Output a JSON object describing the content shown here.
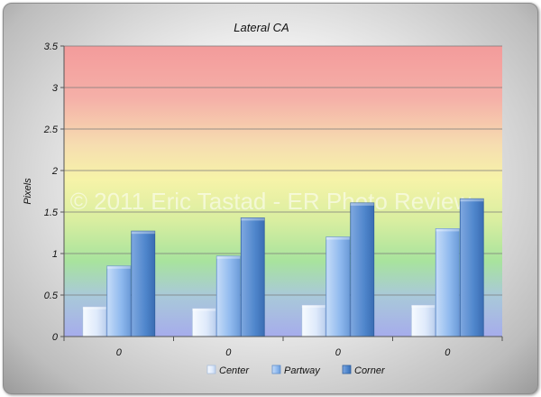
{
  "chart_data": {
    "type": "bar",
    "title": "Lateral CA",
    "xlabel": "",
    "ylabel": "Pixels",
    "categories": [
      "0",
      "0",
      "0",
      "0"
    ],
    "ylim": [
      0,
      3.5
    ],
    "yticks": [
      0,
      0.5,
      1,
      1.5,
      2,
      2.5,
      3,
      3.5
    ],
    "ytick_labels": [
      "0",
      "0.5",
      "1",
      "1.5",
      "2",
      "2.5",
      "3",
      "3.5"
    ],
    "grid": true,
    "legend_position": "bottom",
    "series": [
      {
        "name": "Center",
        "values": [
          0.36,
          0.34,
          0.38,
          0.38
        ],
        "color": "#dde9fb"
      },
      {
        "name": "Partway",
        "values": [
          0.85,
          0.97,
          1.2,
          1.3
        ],
        "color": "#8fb9ee"
      },
      {
        "name": "Corner",
        "values": [
          1.27,
          1.43,
          1.61,
          1.66
        ],
        "color": "#4f86cc"
      }
    ],
    "background_bands": [
      "#f4a9a9",
      "#f7f3a3",
      "#a9e39a",
      "#a7b8ee"
    ]
  },
  "watermark": "© 2011 Eric Tastad - ER Photo Review"
}
